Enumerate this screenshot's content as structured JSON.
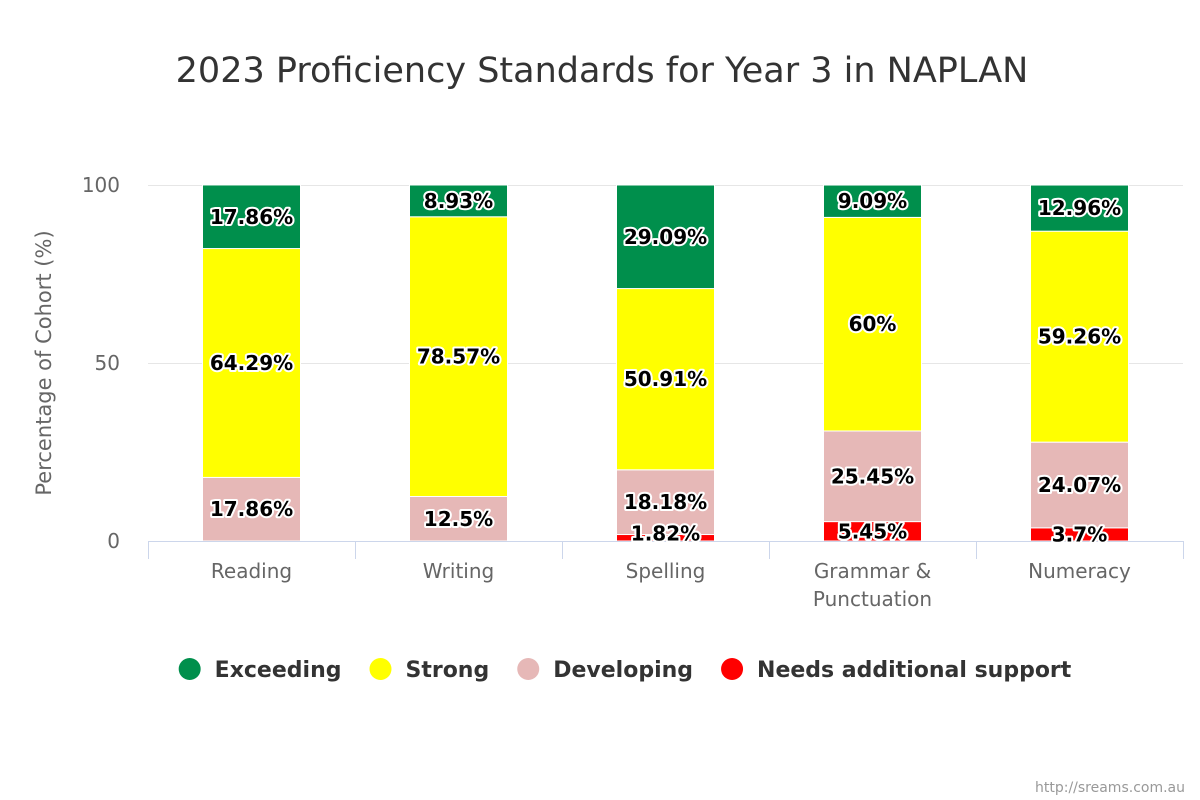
{
  "chart_data": {
    "type": "bar",
    "stacked": true,
    "title": "2023 Proficiency Standards for Year 3 in NAPLAN",
    "xlabel": "",
    "ylabel": "Percentage of Cohort (%)",
    "ylim": [
      0,
      100
    ],
    "yticks": [
      0,
      50,
      100
    ],
    "grid": true,
    "legend_position": "bottom",
    "categories": [
      [
        "Reading"
      ],
      [
        "Writing"
      ],
      [
        "Spelling"
      ],
      [
        "Grammar &",
        "Punctuation"
      ],
      [
        "Numeracy"
      ]
    ],
    "series": [
      {
        "name": "Exceeding",
        "color": "#008f4c",
        "values": [
          17.86,
          8.93,
          29.09,
          9.09,
          12.96
        ],
        "labels": [
          "17.86%",
          "8.93%",
          "29.09%",
          "9.09%",
          "12.96%"
        ]
      },
      {
        "name": "Strong",
        "color": "#ffff00",
        "values": [
          64.29,
          78.57,
          50.91,
          60,
          59.26
        ],
        "labels": [
          "64.29%",
          "78.57%",
          "50.91%",
          "60%",
          "59.26%"
        ]
      },
      {
        "name": "Developing",
        "color": "#e6b8b7",
        "values": [
          17.86,
          12.5,
          18.18,
          25.45,
          24.07
        ],
        "labels": [
          "17.86%",
          "12.5%",
          "18.18%",
          "25.45%",
          "24.07%"
        ]
      },
      {
        "name": "Needs additional support",
        "color": "#ff0000",
        "values": [
          0,
          0,
          1.82,
          5.45,
          3.7
        ],
        "labels": [
          "",
          "",
          "1.82%",
          "5.45%",
          "3.7%"
        ]
      }
    ],
    "credit": "http://sreams.com.au"
  }
}
